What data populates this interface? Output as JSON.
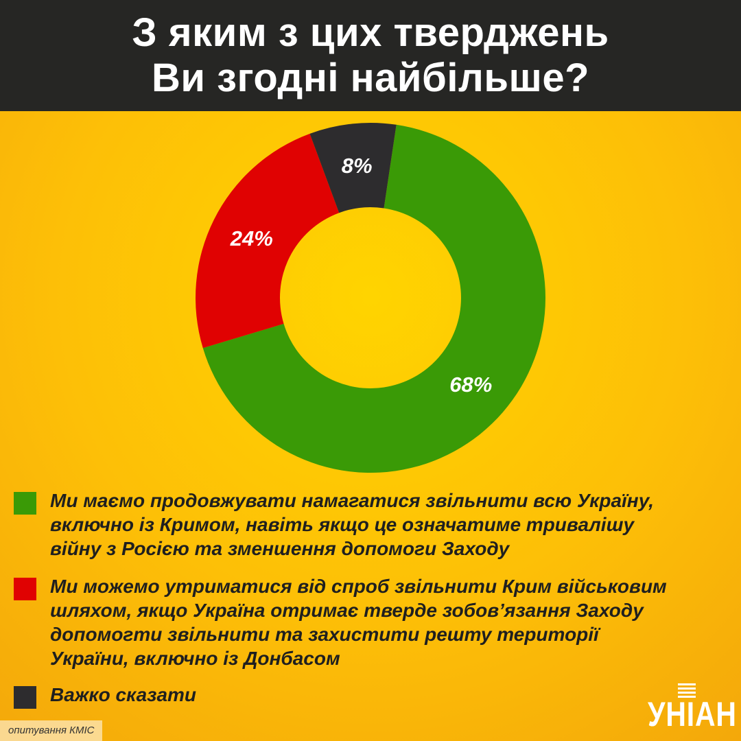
{
  "header": {
    "title_line1": "З яким з цих тверджень",
    "title_line2": "Ви згодні найбільше?"
  },
  "chart_data": {
    "type": "pie",
    "donut": true,
    "slices": [
      {
        "label": "68%",
        "value": 68,
        "color": "#3a9a06"
      },
      {
        "label": "24%",
        "value": 24,
        "color": "#e00202"
      },
      {
        "label": "8%",
        "value": 8,
        "color": "#2d2c2e"
      }
    ],
    "legend": [
      {
        "text": "Ми маємо продовжувати намагатися звільнити всю Україну, включно із Кримом, навіть якщо це означатиме тривалішу війну з Росією та зменшення допомоги Заходу",
        "color": "#3a9a06"
      },
      {
        "text": "Ми можемо утриматися від спроб звільнити Крим військовим шляхом, якщо Україна отримає тверде зобов’язання Заходу допомогти звільнити та захистити решту території України, включно із Донбасом",
        "color": "#e00202"
      },
      {
        "text": "Важко сказати",
        "color": "#2d2c2e"
      }
    ]
  },
  "footer": {
    "source": "опитування КМІС",
    "logo": "УНІАН"
  }
}
